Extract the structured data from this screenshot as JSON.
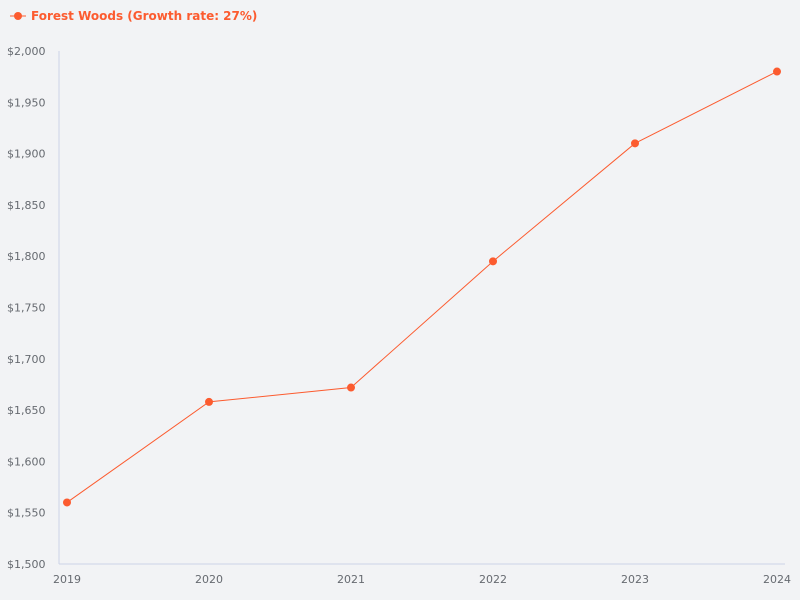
{
  "chart_data": {
    "type": "line",
    "title": "",
    "xlabel": "",
    "ylabel": "",
    "categories": [
      "2019",
      "2020",
      "2021",
      "2022",
      "2023",
      "2024"
    ],
    "series": [
      {
        "name": "Forest Woods (Growth rate: 27%)",
        "color": "#fc5b2f",
        "values": [
          1560,
          1658,
          1672,
          1795,
          1910,
          1980
        ]
      }
    ],
    "ylim": [
      1500,
      2000
    ],
    "yticks": [
      1500,
      1550,
      1600,
      1650,
      1700,
      1750,
      1800,
      1850,
      1900,
      1950,
      2000
    ],
    "ytick_labels": [
      "$1,500",
      "$1,550",
      "$1,600",
      "$1,650",
      "$1,700",
      "$1,750",
      "$1,800",
      "$1,850",
      "$1,900",
      "$1,950",
      "$2,000"
    ],
    "grid": false,
    "legend_position": "top-left"
  },
  "legend": {
    "label": "Forest Woods (Growth rate: 27%)"
  },
  "colors": {
    "series": "#fc5b2f",
    "axis": "#ccd3e6",
    "tick_text": "#666a70",
    "background": "#f2f3f5"
  }
}
